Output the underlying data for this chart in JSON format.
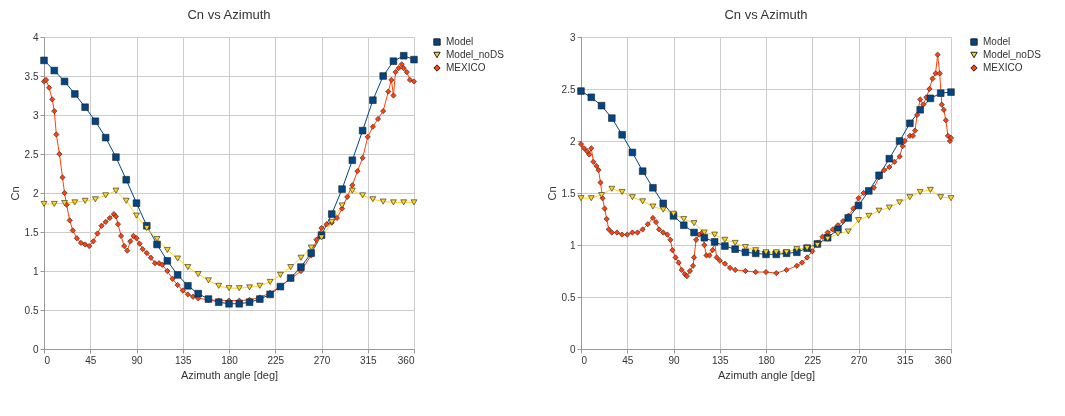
{
  "chart_data": [
    {
      "type": "line",
      "title": "Cn vs Azimuth",
      "xlabel": "Azimuth angle [deg]",
      "ylabel": "Cn",
      "xlim": [
        0,
        360
      ],
      "xticks": [
        0,
        45,
        90,
        135,
        180,
        225,
        270,
        315,
        360
      ],
      "ylim": [
        0,
        4
      ],
      "yticks": [
        0,
        0.5,
        1,
        1.5,
        2,
        2.5,
        3,
        3.5,
        4
      ],
      "grid": true,
      "legend": "right",
      "series": [
        {
          "name": "Model",
          "color": "#004586",
          "marker": "square",
          "x": [
            0,
            10,
            20,
            30,
            40,
            50,
            60,
            70,
            80,
            90,
            100,
            110,
            120,
            130,
            140,
            150,
            160,
            170,
            180,
            190,
            200,
            210,
            220,
            230,
            240,
            250,
            260,
            270,
            280,
            290,
            300,
            310,
            320,
            330,
            340,
            350,
            360
          ],
          "values": [
            3.7,
            3.57,
            3.43,
            3.27,
            3.1,
            2.92,
            2.71,
            2.46,
            2.17,
            1.87,
            1.58,
            1.34,
            1.13,
            0.95,
            0.81,
            0.71,
            0.64,
            0.6,
            0.58,
            0.58,
            0.6,
            0.64,
            0.7,
            0.8,
            0.91,
            1.05,
            1.23,
            1.46,
            1.73,
            2.05,
            2.42,
            2.8,
            3.19,
            3.5,
            3.69,
            3.76,
            3.71
          ]
        },
        {
          "name": "Model_noDS",
          "color": "#ffd320",
          "marker": "triangle",
          "x": [
            0,
            10,
            20,
            30,
            40,
            50,
            60,
            70,
            80,
            90,
            100,
            110,
            120,
            130,
            140,
            150,
            160,
            170,
            180,
            190,
            200,
            210,
            220,
            230,
            240,
            250,
            260,
            270,
            280,
            290,
            300,
            310,
            320,
            330,
            340,
            350,
            360
          ],
          "values": [
            1.86,
            1.86,
            1.87,
            1.88,
            1.9,
            1.92,
            1.97,
            2.03,
            1.9,
            1.71,
            1.55,
            1.41,
            1.27,
            1.16,
            1.05,
            0.96,
            0.88,
            0.81,
            0.78,
            0.78,
            0.79,
            0.81,
            0.86,
            0.95,
            1.05,
            1.17,
            1.3,
            1.43,
            1.63,
            1.84,
            2.03,
            1.97,
            1.92,
            1.89,
            1.88,
            1.88,
            1.88
          ]
        },
        {
          "name": "MEXICO",
          "color": "#ff420e",
          "marker": "diamond",
          "x": [
            0,
            2,
            5,
            8,
            10,
            12,
            15,
            18,
            20,
            22,
            25,
            28,
            32,
            36,
            40,
            44,
            48,
            52,
            56,
            60,
            64,
            68,
            70,
            72,
            75,
            78,
            81,
            84,
            87,
            90,
            93,
            96,
            100,
            104,
            108,
            112,
            115,
            120,
            125,
            130,
            135,
            140,
            145,
            150,
            160,
            170,
            180,
            190,
            200,
            210,
            220,
            230,
            240,
            250,
            260,
            265,
            270,
            275,
            280,
            285,
            290,
            295,
            300,
            305,
            310,
            315,
            320,
            325,
            330,
            335,
            338,
            340,
            342,
            345,
            348,
            350,
            353,
            356,
            360
          ],
          "values": [
            3.43,
            3.45,
            3.35,
            3.2,
            3.05,
            2.75,
            2.5,
            2.2,
            2.0,
            1.85,
            1.65,
            1.52,
            1.42,
            1.36,
            1.34,
            1.32,
            1.38,
            1.48,
            1.58,
            1.63,
            1.68,
            1.73,
            1.7,
            1.6,
            1.45,
            1.32,
            1.26,
            1.38,
            1.45,
            1.42,
            1.35,
            1.28,
            1.23,
            1.17,
            1.1,
            1.1,
            1.08,
            1.0,
            0.9,
            0.82,
            0.75,
            0.7,
            0.67,
            0.65,
            0.63,
            0.62,
            0.62,
            0.62,
            0.63,
            0.66,
            0.72,
            0.8,
            0.9,
            1.0,
            1.2,
            1.4,
            1.55,
            1.6,
            1.62,
            1.68,
            1.8,
            1.95,
            2.1,
            2.28,
            2.45,
            2.72,
            2.85,
            2.95,
            3.05,
            3.3,
            3.45,
            3.25,
            3.55,
            3.6,
            3.65,
            3.6,
            3.55,
            3.45,
            3.43
          ]
        }
      ]
    },
    {
      "type": "line",
      "title": "Cn vs Azimuth",
      "xlabel": "Azimuth angle [deg]",
      "ylabel": "Cn",
      "xlim": [
        0,
        360
      ],
      "xticks": [
        0,
        45,
        90,
        135,
        180,
        225,
        270,
        315,
        360
      ],
      "ylim": [
        0,
        3
      ],
      "yticks": [
        0,
        0.5,
        1,
        1.5,
        2,
        2.5,
        3
      ],
      "grid": true,
      "legend": "right",
      "series": [
        {
          "name": "Model",
          "color": "#004586",
          "marker": "square",
          "x": [
            0,
            10,
            20,
            30,
            40,
            50,
            60,
            70,
            80,
            90,
            100,
            110,
            120,
            130,
            140,
            150,
            160,
            170,
            180,
            190,
            200,
            210,
            220,
            230,
            240,
            250,
            260,
            270,
            280,
            290,
            300,
            310,
            320,
            330,
            340,
            350,
            360
          ],
          "values": [
            2.48,
            2.42,
            2.34,
            2.22,
            2.06,
            1.89,
            1.71,
            1.55,
            1.4,
            1.28,
            1.19,
            1.12,
            1.07,
            1.03,
            0.99,
            0.96,
            0.93,
            0.92,
            0.91,
            0.91,
            0.92,
            0.93,
            0.97,
            1.01,
            1.07,
            1.15,
            1.26,
            1.38,
            1.52,
            1.67,
            1.83,
            2.0,
            2.17,
            2.3,
            2.41,
            2.46,
            2.47
          ]
        },
        {
          "name": "Model_noDS",
          "color": "#ffd320",
          "marker": "triangle",
          "x": [
            0,
            10,
            20,
            30,
            40,
            50,
            60,
            70,
            80,
            90,
            100,
            110,
            120,
            130,
            140,
            150,
            160,
            170,
            180,
            190,
            200,
            210,
            220,
            230,
            240,
            250,
            260,
            270,
            280,
            290,
            300,
            310,
            320,
            330,
            340,
            350,
            360
          ],
          "values": [
            1.45,
            1.45,
            1.48,
            1.54,
            1.51,
            1.46,
            1.42,
            1.37,
            1.34,
            1.3,
            1.25,
            1.21,
            1.12,
            1.1,
            1.05,
            1.02,
            0.98,
            0.95,
            0.93,
            0.93,
            0.93,
            0.96,
            0.97,
            1.0,
            1.06,
            1.11,
            1.13,
            1.24,
            1.28,
            1.33,
            1.36,
            1.41,
            1.46,
            1.51,
            1.53,
            1.46,
            1.45
          ]
        },
        {
          "name": "MEXICO",
          "color": "#ff420e",
          "marker": "diamond",
          "x": [
            0,
            3,
            6,
            8,
            10,
            12,
            15,
            17,
            19,
            21,
            23,
            25,
            27,
            30,
            35,
            40,
            45,
            50,
            55,
            60,
            65,
            70,
            73,
            76,
            80,
            84,
            87,
            89,
            92,
            95,
            98,
            101,
            103,
            106,
            109,
            110,
            112,
            115,
            118,
            120,
            122,
            125,
            128,
            130,
            132,
            135,
            140,
            145,
            150,
            160,
            170,
            180,
            190,
            200,
            210,
            215,
            220,
            225,
            230,
            235,
            240,
            245,
            250,
            255,
            260,
            265,
            270,
            275,
            280,
            285,
            290,
            295,
            300,
            305,
            310,
            313,
            315,
            320,
            323,
            325,
            327,
            330,
            333,
            336,
            339,
            342,
            345,
            347,
            349,
            351,
            353,
            355,
            357,
            359,
            360
          ],
          "values": [
            1.97,
            1.93,
            1.9,
            1.87,
            1.93,
            1.8,
            1.76,
            1.72,
            1.6,
            1.45,
            1.35,
            1.25,
            1.15,
            1.12,
            1.12,
            1.1,
            1.1,
            1.12,
            1.12,
            1.15,
            1.2,
            1.26,
            1.22,
            1.15,
            1.12,
            1.1,
            1.05,
            0.95,
            0.88,
            0.83,
            0.76,
            0.72,
            0.7,
            0.75,
            0.8,
            0.88,
            1.05,
            1.1,
            1.12,
            1.0,
            0.9,
            0.9,
            0.95,
            1.03,
            0.88,
            0.85,
            0.82,
            0.78,
            0.76,
            0.75,
            0.74,
            0.74,
            0.73,
            0.76,
            0.8,
            0.83,
            0.88,
            0.94,
            1.02,
            1.08,
            1.12,
            1.15,
            1.19,
            1.23,
            1.28,
            1.35,
            1.45,
            1.5,
            1.52,
            1.55,
            1.65,
            1.72,
            1.75,
            1.8,
            1.85,
            1.95,
            2.0,
            2.05,
            2.05,
            2.1,
            2.25,
            2.4,
            2.35,
            2.42,
            2.5,
            2.6,
            2.65,
            2.83,
            2.65,
            2.35,
            2.3,
            2.2,
            2.05,
            2.0,
            2.03
          ]
        }
      ]
    }
  ]
}
